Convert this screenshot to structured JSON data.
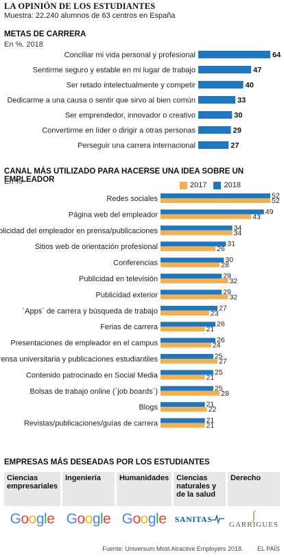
{
  "header": {
    "title": "LA OPINIÓN DE LOS ESTUDIANTES",
    "subtitle": "Muestra: 22.240 alumnos de 63 centros en España"
  },
  "chart_data": [
    {
      "type": "bar",
      "orientation": "horizontal",
      "title": "METAS DE CARRERA",
      "unit": "En %. 2018",
      "categories": [
        "Conciliar mi vida personal y profesional",
        "Sentirme seguro y estable en mi lugar de trabajo",
        "Ser retado intelectualmente y competir",
        "Dedicarme a una causa o sentir que sirvo al bien común",
        "Ser emprendedor, innovador o creativo",
        "Convertirme en líder o dirigir a otras personas",
        "Perseguir una carrera internacional"
      ],
      "series": [
        {
          "values": [
            64,
            47,
            40,
            33,
            30,
            29,
            27
          ],
          "color": "#1f77c0"
        }
      ],
      "xlim": [
        0,
        64
      ]
    },
    {
      "type": "bar",
      "orientation": "horizontal",
      "title": "CANAL MÁS UTILIZADO PARA HACERSE UNA IDEA SOBRE UN EMPLEADOR",
      "unit": "En %",
      "legend_position": "top-right",
      "categories": [
        "Redes sociales",
        "Página web del empleador",
        "Publicidad del empleador en prensa/publicaciones",
        "Sitios web de orientación profesional",
        "Conferencias",
        "Publicidad en televisión",
        "Publicidad exterior",
        "`Apps´ de carrera y búsqueda de trabajo",
        "Ferias de carrera",
        "Presentaciones de empleador en el campus",
        "Prensa universitaria y publicaciones estudiantiles",
        "Contenido patrocinado en Social Media",
        "Bolsas de trabajo online (`job boards´)",
        "Blogs",
        "Revistas/publicaciones/guías de carrera"
      ],
      "series": [
        {
          "name": "2017",
          "values": [
            52,
            43,
            34,
            26,
            28,
            32,
            32,
            23,
            21,
            24,
            27,
            21,
            28,
            22,
            21
          ],
          "color": "#f2b050"
        },
        {
          "name": "2018",
          "values": [
            52,
            49,
            34,
            31,
            30,
            29,
            29,
            27,
            26,
            26,
            25,
            25,
            25,
            21,
            21
          ],
          "color": "#1f77c0"
        }
      ],
      "xlim": [
        0,
        52
      ]
    }
  ],
  "companies": {
    "title": "EMPRESAS MÁS DESEADAS POR LOS ESTUDIANTES",
    "columns": [
      {
        "category": "Ciencias empresariales",
        "logo": "Google",
        "logo_icon": "google-logo"
      },
      {
        "category": "Ingeniería",
        "logo": "Google",
        "logo_icon": "google-logo"
      },
      {
        "category": "Humanidades",
        "logo": "Google",
        "logo_icon": "google-logo"
      },
      {
        "category": "Ciencias naturales y de la salud",
        "logo": "SANITAS",
        "logo_icon": "sanitas-logo"
      },
      {
        "category": "Derecho",
        "logo": "GARRIGUES",
        "logo_icon": "garrigues-logo"
      }
    ]
  },
  "footer": {
    "source": "Fuente: Universum Most Atractive Employers 2018.",
    "brand": "EL PAÍS"
  }
}
